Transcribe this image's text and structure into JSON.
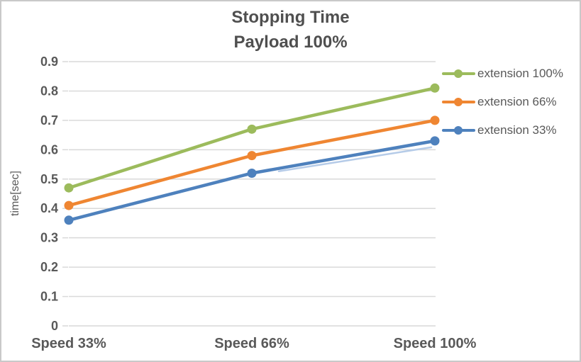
{
  "frame": {
    "background": "#ffffff",
    "border_color": "#c9c9c9"
  },
  "chart_data": {
    "type": "line",
    "title": "Stopping Time",
    "subtitle": "Payload 100%",
    "xlabel": "",
    "ylabel": "time[sec]",
    "categories": [
      "Speed 33%",
      "Speed 66%",
      "Speed 100%"
    ],
    "series": [
      {
        "name": "extension 100%",
        "color": "#9cbb5c",
        "values": [
          0.47,
          0.67,
          0.81
        ]
      },
      {
        "name": "extension 66%",
        "color": "#ef8632",
        "values": [
          0.41,
          0.58,
          0.7
        ]
      },
      {
        "name": "extension 33%",
        "color": "#4e81bd",
        "values": [
          0.36,
          0.52,
          0.63
        ]
      }
    ],
    "ylim": [
      0,
      0.9
    ],
    "yticks": [
      0,
      0.1,
      0.2,
      0.3,
      0.4,
      0.5,
      0.6,
      0.7,
      0.8,
      0.9
    ],
    "ytick_labels": [
      "0",
      "0.1",
      "0.2",
      "0.3",
      "0.4",
      "0.5",
      "0.6",
      "0.7",
      "0.8",
      "0.9"
    ],
    "grid": true,
    "legend_position": "right",
    "styles": {
      "text_color": "#595959",
      "title_color": "#4f4f4f",
      "grid_color": "#d9d9d9",
      "marker_shape": "circle",
      "shadow_artifact_color": "#b5cbe8"
    }
  }
}
